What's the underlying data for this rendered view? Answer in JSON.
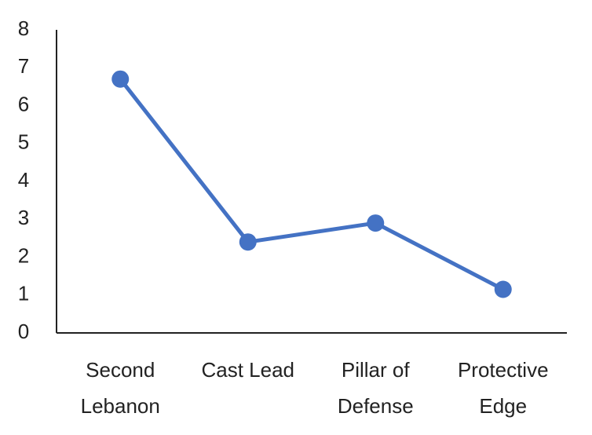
{
  "chart_data": {
    "type": "line",
    "categories": [
      "Second Lebanon",
      "Cast Lead",
      "Pillar of Defense",
      "Protective Edge"
    ],
    "series": [
      {
        "color": "#4472c4",
        "values": [
          6.7,
          2.4,
          2.9,
          1.15
        ]
      }
    ],
    "ylim": [
      0,
      8
    ],
    "yticks": [
      0,
      1,
      2,
      3,
      4,
      5,
      6,
      7,
      8
    ],
    "grid": false
  }
}
